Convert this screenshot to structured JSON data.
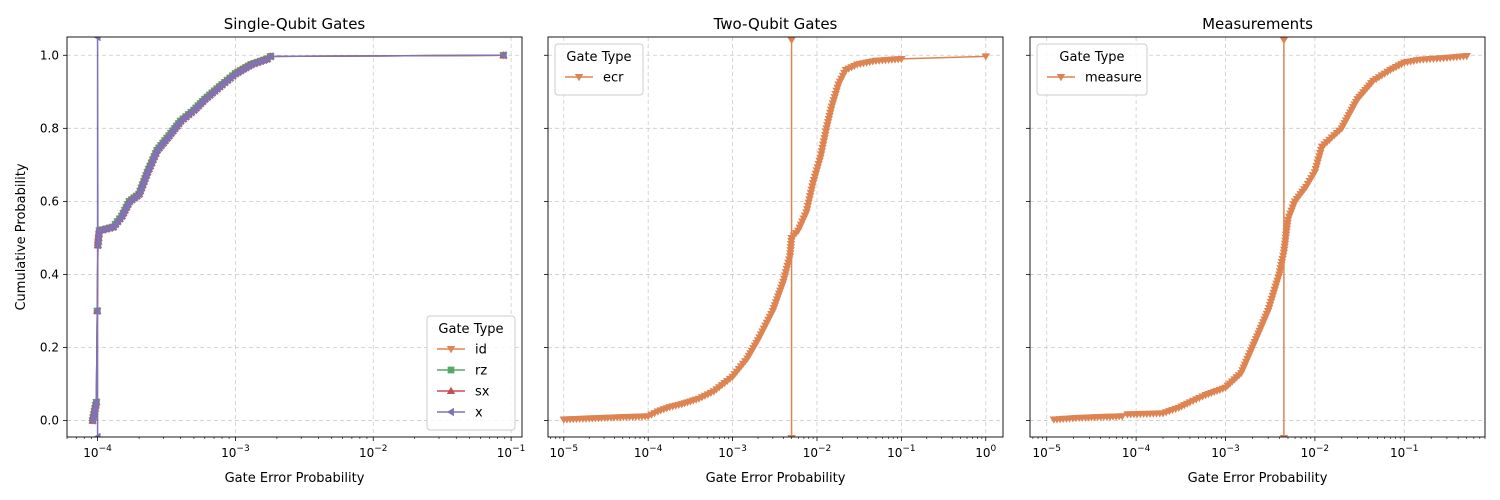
{
  "chart_data": [
    {
      "type": "line",
      "title": "Single-Qubit Gates",
      "xlabel": "Gate Error Probability",
      "ylabel": "Cumulative Probability",
      "xscale": "log",
      "xlim": [
        6e-05,
        0.12
      ],
      "ylim": [
        -0.045,
        1.05
      ],
      "x_ticks": [
        "10^-4",
        "10^-3",
        "10^-2",
        "10^-1"
      ],
      "y_ticks": [
        "0.0",
        "0.2",
        "0.4",
        "0.6",
        "0.8",
        "1.0"
      ],
      "grid": true,
      "vline": null,
      "legend": {
        "title": "Gate Type",
        "position": "lower-right"
      },
      "series": [
        {
          "name": "id",
          "color": "#dd8452",
          "marker": "triangle-down",
          "points": [
            [
              9.2e-05,
              0.0
            ],
            [
              9.8e-05,
              0.05
            ],
            [
              9.95e-05,
              0.3
            ],
            [
              0.0001005,
              0.48
            ],
            [
              0.000103,
              0.52
            ],
            [
              0.00013,
              0.53
            ],
            [
              0.00015,
              0.56
            ],
            [
              0.00017,
              0.6
            ],
            [
              0.0002,
              0.62
            ],
            [
              0.00023,
              0.68
            ],
            [
              0.00027,
              0.74
            ],
            [
              0.00033,
              0.78
            ],
            [
              0.0004,
              0.82
            ],
            [
              0.0005,
              0.85
            ],
            [
              0.0006,
              0.88
            ],
            [
              0.0008,
              0.92
            ],
            [
              0.001,
              0.95
            ],
            [
              0.0013,
              0.975
            ],
            [
              0.0017,
              0.99
            ],
            [
              0.0018,
              0.997
            ],
            [
              0.088,
              1.0
            ]
          ]
        },
        {
          "name": "rz",
          "color": "#55a868",
          "marker": "square",
          "points": [
            [
              9.2e-05,
              0.0
            ],
            [
              9.8e-05,
              0.05
            ],
            [
              9.95e-05,
              0.3
            ],
            [
              0.0001005,
              0.48
            ],
            [
              0.000103,
              0.52
            ],
            [
              0.00013,
              0.53
            ],
            [
              0.00015,
              0.56
            ],
            [
              0.00017,
              0.6
            ],
            [
              0.0002,
              0.62
            ],
            [
              0.00023,
              0.68
            ],
            [
              0.00027,
              0.74
            ],
            [
              0.00033,
              0.78
            ],
            [
              0.0004,
              0.82
            ],
            [
              0.0005,
              0.85
            ],
            [
              0.0006,
              0.88
            ],
            [
              0.0008,
              0.92
            ],
            [
              0.001,
              0.95
            ],
            [
              0.0013,
              0.975
            ],
            [
              0.0017,
              0.99
            ],
            [
              0.0018,
              0.997
            ],
            [
              0.088,
              1.0
            ]
          ]
        },
        {
          "name": "sx",
          "color": "#c44e52",
          "marker": "triangle-up",
          "points": [
            [
              9.2e-05,
              0.0
            ],
            [
              9.8e-05,
              0.05
            ],
            [
              9.95e-05,
              0.3
            ],
            [
              0.0001005,
              0.48
            ],
            [
              0.000103,
              0.52
            ],
            [
              0.00013,
              0.53
            ],
            [
              0.00015,
              0.56
            ],
            [
              0.00017,
              0.6
            ],
            [
              0.0002,
              0.62
            ],
            [
              0.00023,
              0.68
            ],
            [
              0.00027,
              0.74
            ],
            [
              0.00033,
              0.78
            ],
            [
              0.0004,
              0.82
            ],
            [
              0.0005,
              0.85
            ],
            [
              0.0006,
              0.88
            ],
            [
              0.0008,
              0.92
            ],
            [
              0.001,
              0.95
            ],
            [
              0.0013,
              0.975
            ],
            [
              0.0017,
              0.99
            ],
            [
              0.0018,
              0.997
            ],
            [
              0.088,
              1.0
            ]
          ]
        },
        {
          "name": "x",
          "color": "#8172b3",
          "marker": "triangle-left",
          "points": [
            [
              9.2e-05,
              0.0
            ],
            [
              9.8e-05,
              0.05
            ],
            [
              9.95e-05,
              0.3
            ],
            [
              0.0001,
              -0.045
            ],
            [
              0.0001,
              1.05
            ],
            [
              0.0001005,
              0.48
            ],
            [
              0.000103,
              0.52
            ],
            [
              0.00013,
              0.53
            ],
            [
              0.00015,
              0.56
            ],
            [
              0.00017,
              0.6
            ],
            [
              0.0002,
              0.62
            ],
            [
              0.00023,
              0.68
            ],
            [
              0.00027,
              0.74
            ],
            [
              0.00033,
              0.78
            ],
            [
              0.0004,
              0.82
            ],
            [
              0.0005,
              0.85
            ],
            [
              0.0006,
              0.88
            ],
            [
              0.0008,
              0.92
            ],
            [
              0.001,
              0.95
            ],
            [
              0.0013,
              0.975
            ],
            [
              0.0017,
              0.99
            ],
            [
              0.0018,
              0.997
            ],
            [
              0.088,
              1.0
            ]
          ]
        }
      ]
    },
    {
      "type": "line",
      "title": "Two-Qubit Gates",
      "xlabel": "Gate Error Probability",
      "ylabel": "",
      "xscale": "log",
      "xlim": [
        6.5e-06,
        1.6
      ],
      "ylim": [
        -0.045,
        1.05
      ],
      "x_ticks": [
        "10^-5",
        "10^-4",
        "10^-3",
        "10^-2",
        "10^-1",
        "10^0"
      ],
      "y_ticks": [
        "",
        "",
        "",
        "",
        "",
        ""
      ],
      "grid": true,
      "vline": 0.005,
      "legend": {
        "title": "Gate Type",
        "position": "upper-left"
      },
      "series": [
        {
          "name": "ecr",
          "color": "#dd8452",
          "marker": "triangle-down",
          "points": [
            [
              1e-05,
              0.003
            ],
            [
              2e-05,
              0.006
            ],
            [
              0.0001,
              0.012
            ],
            [
              0.00013,
              0.025
            ],
            [
              0.00018,
              0.037
            ],
            [
              0.00025,
              0.045
            ],
            [
              0.0004,
              0.06
            ],
            [
              0.0006,
              0.08
            ],
            [
              0.001,
              0.12
            ],
            [
              0.0015,
              0.17
            ],
            [
              0.002,
              0.22
            ],
            [
              0.003,
              0.3
            ],
            [
              0.004,
              0.38
            ],
            [
              0.0048,
              0.45
            ],
            [
              0.005,
              0.5
            ],
            [
              0.006,
              0.52
            ],
            [
              0.0075,
              0.57
            ],
            [
              0.009,
              0.65
            ],
            [
              0.011,
              0.72
            ],
            [
              0.013,
              0.8
            ],
            [
              0.015,
              0.86
            ],
            [
              0.018,
              0.92
            ],
            [
              0.022,
              0.96
            ],
            [
              0.03,
              0.975
            ],
            [
              0.05,
              0.985
            ],
            [
              0.1,
              0.99
            ],
            [
              1.0,
              0.997
            ]
          ]
        }
      ]
    },
    {
      "type": "line",
      "title": "Measurements",
      "xlabel": "Gate Error Probability",
      "ylabel": "",
      "xscale": "log",
      "xlim": [
        6.5e-06,
        0.8
      ],
      "ylim": [
        -0.045,
        1.05
      ],
      "x_ticks": [
        "10^-5",
        "10^-4",
        "10^-3",
        "10^-2",
        "10^-1"
      ],
      "y_ticks": [
        "",
        "",
        "",
        "",
        "",
        ""
      ],
      "grid": true,
      "vline": 0.0045,
      "legend": {
        "title": "Gate Type",
        "position": "upper-left"
      },
      "series": [
        {
          "name": "measure",
          "color": "#dd8452",
          "marker": "triangle-down",
          "points": [
            [
              1.2e-05,
              0.003
            ],
            [
              2.5e-05,
              0.008
            ],
            [
              7e-05,
              0.012
            ],
            [
              8e-05,
              0.017
            ],
            [
              0.0002,
              0.02
            ],
            [
              0.0003,
              0.035
            ],
            [
              0.0004,
              0.05
            ],
            [
              0.0006,
              0.07
            ],
            [
              0.001,
              0.09
            ],
            [
              0.0015,
              0.13
            ],
            [
              0.002,
              0.2
            ],
            [
              0.003,
              0.3
            ],
            [
              0.004,
              0.4
            ],
            [
              0.0045,
              0.46
            ],
            [
              0.005,
              0.55
            ],
            [
              0.006,
              0.6
            ],
            [
              0.008,
              0.64
            ],
            [
              0.01,
              0.68
            ],
            [
              0.012,
              0.75
            ],
            [
              0.02,
              0.8
            ],
            [
              0.03,
              0.88
            ],
            [
              0.045,
              0.93
            ],
            [
              0.07,
              0.96
            ],
            [
              0.1,
              0.98
            ],
            [
              0.15,
              0.988
            ],
            [
              0.3,
              0.993
            ],
            [
              0.5,
              0.998
            ]
          ]
        }
      ]
    }
  ]
}
